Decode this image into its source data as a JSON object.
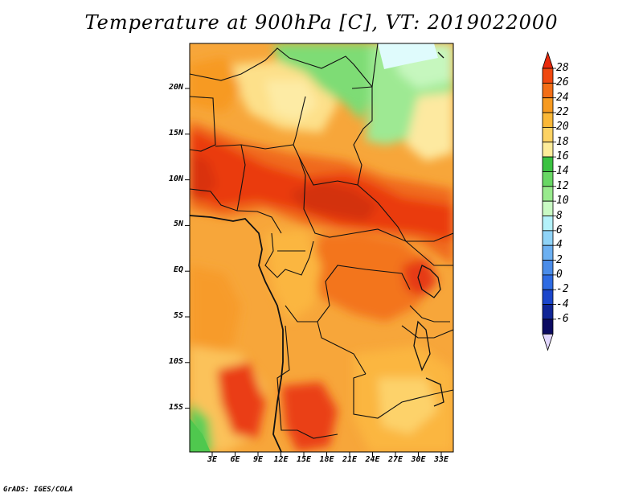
{
  "title": "Temperature at 900hPa [C], VT: 2019022000",
  "credit": "GrADS: IGES/COLA",
  "lat_labels": [
    "20N",
    "15N",
    "10N",
    "5N",
    "EQ",
    "5S",
    "10S",
    "15S"
  ],
  "lon_labels": [
    "3E",
    "6E",
    "9E",
    "12E",
    "15E",
    "18E",
    "21E",
    "24E",
    "27E",
    "30E",
    "33E"
  ],
  "colorbar": {
    "labels": [
      "28",
      "26",
      "24",
      "22",
      "20",
      "18",
      "16",
      "14",
      "12",
      "10",
      "8",
      "6",
      "4",
      "2",
      "0",
      "-2",
      "-4",
      "-6"
    ],
    "colors": [
      "#e8290b",
      "#f0480f",
      "#f36e16",
      "#f79a20",
      "#fbb837",
      "#fcd263",
      "#fdec9a",
      "#3ac241",
      "#68d764",
      "#98ea8d",
      "#c9fac4",
      "#b4f2fa",
      "#8fd3f7",
      "#6cb0f2",
      "#4a8ce9",
      "#2e6be3",
      "#1b46cb",
      "#102596",
      "#0c0b62",
      "#e3d8ff"
    ]
  }
}
